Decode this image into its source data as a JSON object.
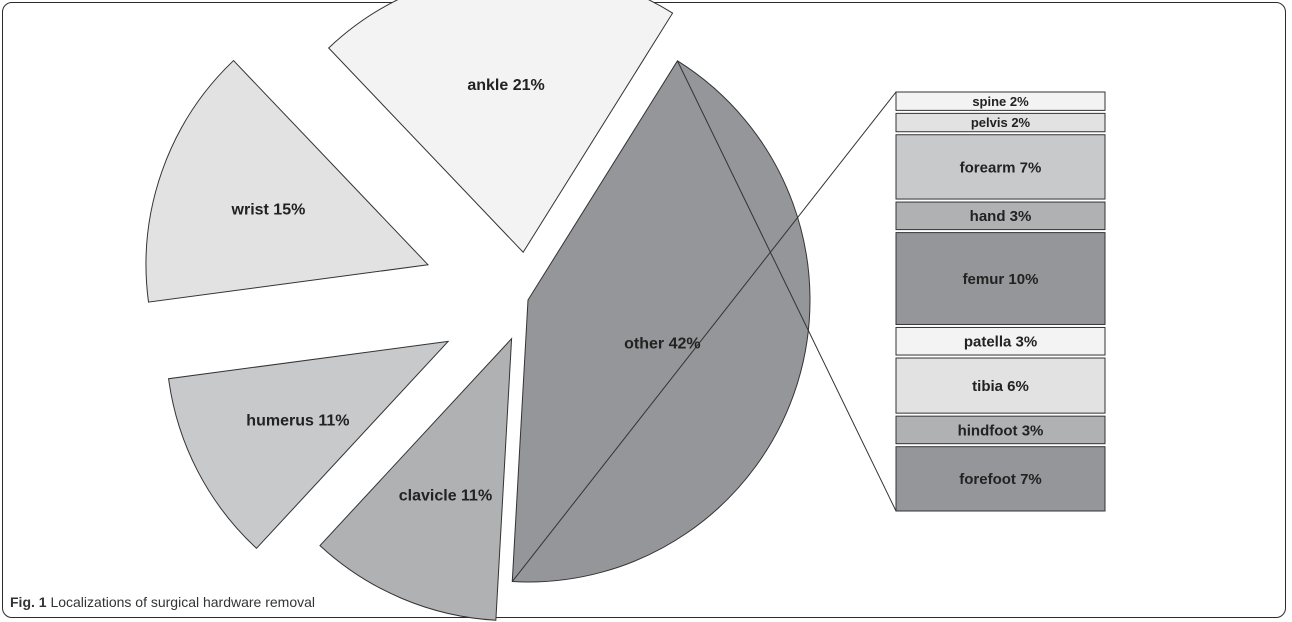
{
  "caption": {
    "label": "Fig. 1",
    "text": "Localizations of surgical hardware removal"
  },
  "chart_data": {
    "type": "pie",
    "title": "",
    "slices": [
      {
        "label": "ankle",
        "value": 21,
        "display": "ankle 21%",
        "color": "#f3f3f3"
      },
      {
        "label": "wrist",
        "value": 15,
        "display": "wrist 15%",
        "color": "#e2e2e3"
      },
      {
        "label": "humerus",
        "value": 11,
        "display": "humerus 11%",
        "color": "#c8c9cb"
      },
      {
        "label": "clavicle",
        "value": 11,
        "display": "clavicle 11%",
        "color": "#b0b1b3"
      },
      {
        "label": "other",
        "value": 42,
        "display": "other 42%",
        "color": "#959699"
      }
    ],
    "breakdown_of": "other",
    "breakdown": [
      {
        "label": "spine",
        "value": 2,
        "display": "spine 2%",
        "color": "#f3f3f3"
      },
      {
        "label": "pelvis",
        "value": 2,
        "display": "pelvis 2%",
        "color": "#e2e2e3"
      },
      {
        "label": "forearm",
        "value": 7,
        "display": "forearm 7%",
        "color": "#c8c9cb"
      },
      {
        "label": "hand",
        "value": 3,
        "display": "hand 3%",
        "color": "#b0b1b3"
      },
      {
        "label": "femur",
        "value": 10,
        "display": "femur 10%",
        "color": "#959699"
      },
      {
        "label": "patella",
        "value": 3,
        "display": "patella 3%",
        "color": "#f3f3f3"
      },
      {
        "label": "tibia",
        "value": 6,
        "display": "tibia 6%",
        "color": "#e2e2e3"
      },
      {
        "label": "hindfoot",
        "value": 3,
        "display": "hindfoot 3%",
        "color": "#b0b1b3"
      },
      {
        "label": "forefoot",
        "value": 7,
        "display": "forefoot 7%",
        "color": "#959699"
      }
    ],
    "legend": "none",
    "stroke_color": "#333333"
  }
}
